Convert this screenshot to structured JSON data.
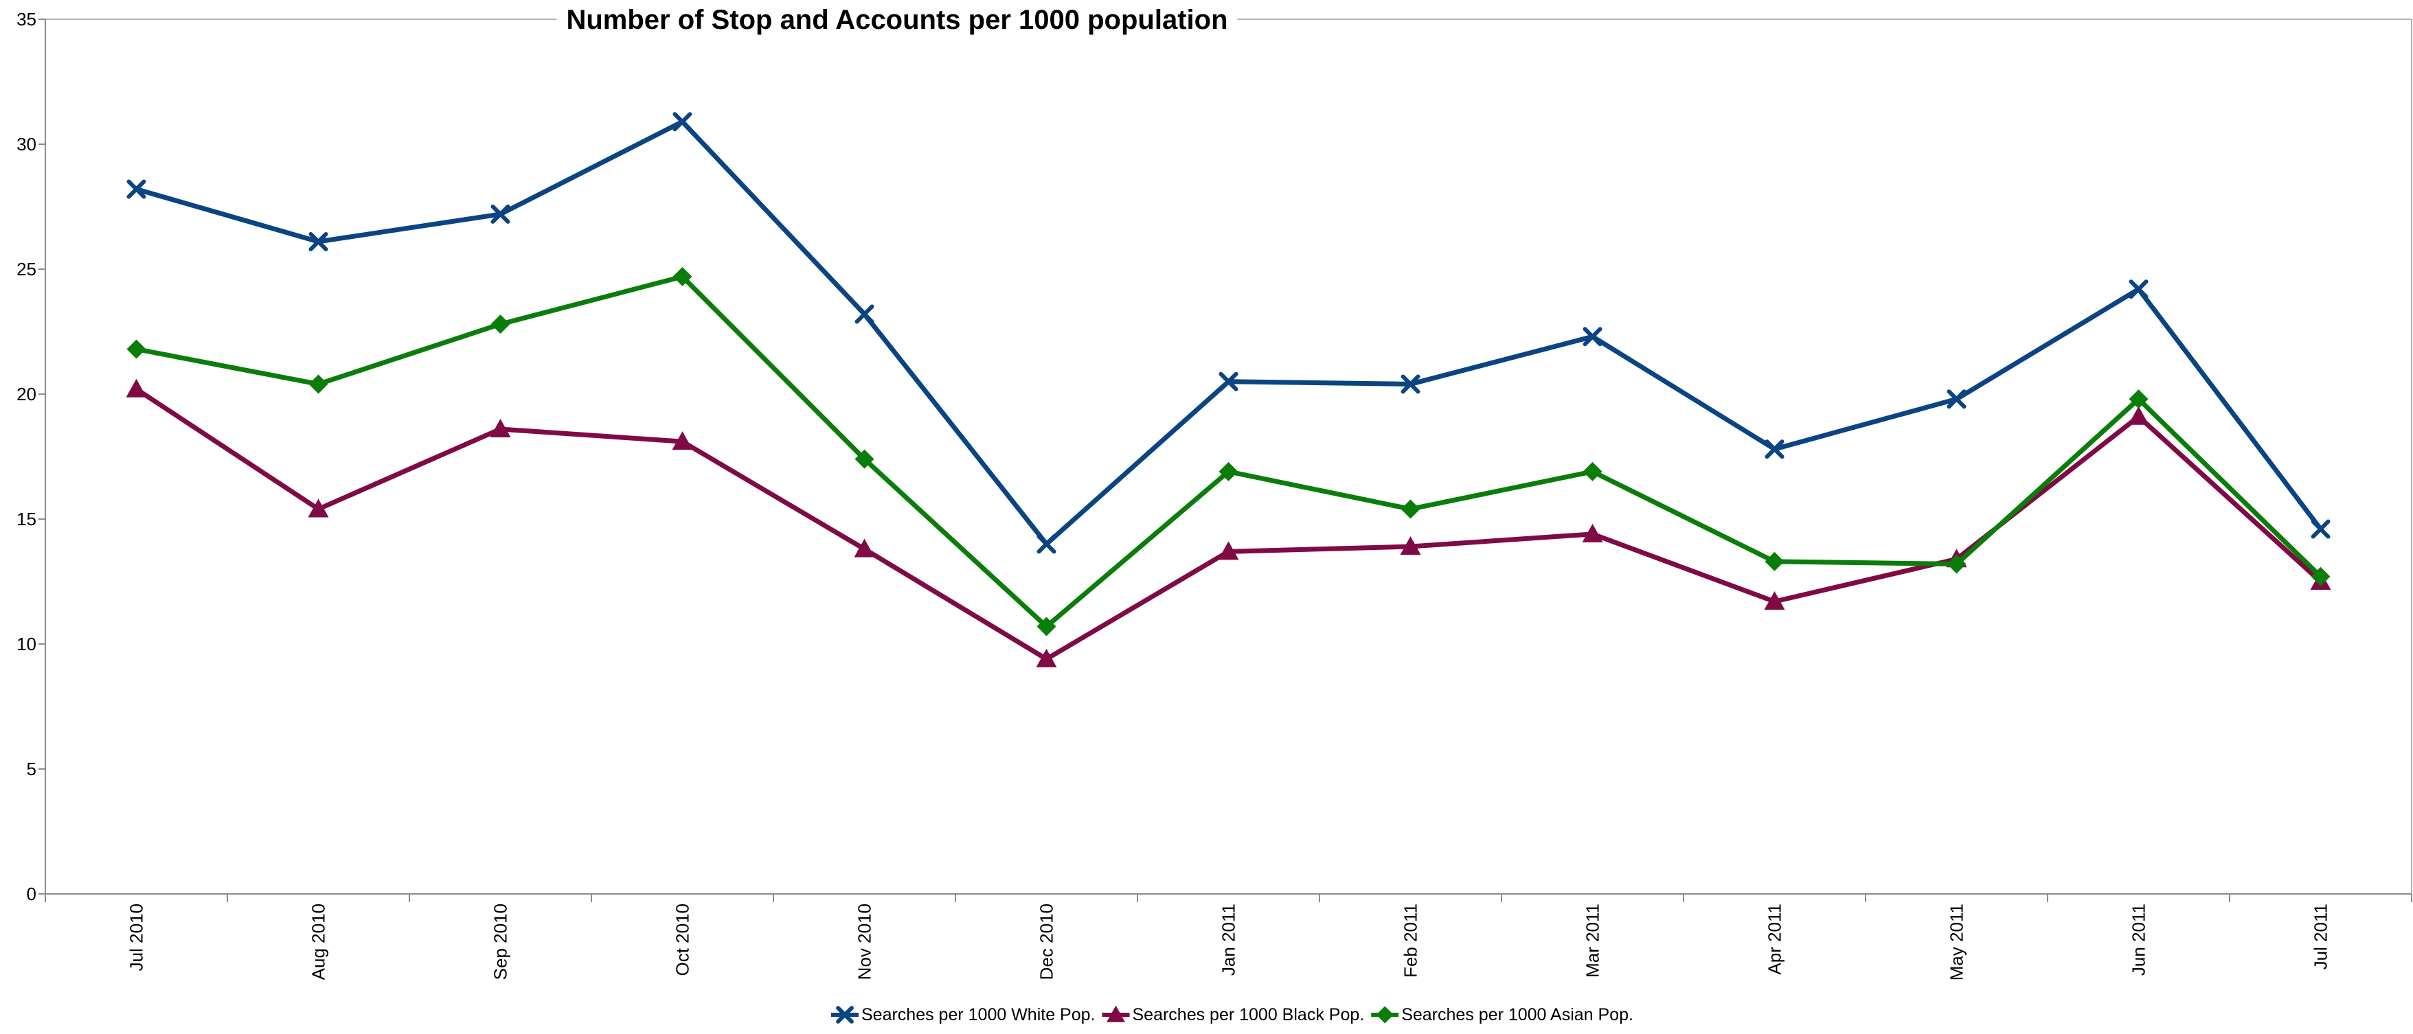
{
  "chart_data": {
    "type": "line",
    "title": "Number of Stop and Accounts per 1000 population",
    "xlabel": "",
    "ylabel": "",
    "ylim": [
      0,
      35
    ],
    "yticks": [
      "0",
      "5",
      "10",
      "15",
      "20",
      "25",
      "30",
      "35"
    ],
    "grid": false,
    "legend_position": "bottom",
    "categories": [
      "Jul 2010",
      "Aug 2010",
      "Sep 2010",
      "Oct 2010",
      "Nov 2010",
      "Dec 2010",
      "Jan 2011",
      "Feb 2011",
      "Mar 2011",
      "Apr 2011",
      "May 2011",
      "Jun 2011",
      "Jul 2011"
    ],
    "series": [
      {
        "name": "Searches per 1000 White Pop.",
        "color": "#0b4483",
        "marker": "x",
        "values": [
          28.2,
          26.1,
          27.2,
          30.9,
          23.2,
          14.0,
          20.5,
          20.4,
          22.3,
          17.8,
          19.8,
          24.2,
          14.6
        ]
      },
      {
        "name": "Searches per 1000  Black Pop.",
        "color": "#7f0a45",
        "marker": "triangle",
        "values": [
          20.2,
          15.4,
          18.6,
          18.1,
          13.8,
          9.4,
          13.7,
          13.9,
          14.4,
          11.7,
          13.4,
          19.1,
          12.5
        ]
      },
      {
        "name": "Searches per 1000 Asian Pop.",
        "color": "#0a7d0a",
        "marker": "diamond",
        "values": [
          21.8,
          20.4,
          22.8,
          24.7,
          17.4,
          10.7,
          16.9,
          15.4,
          16.9,
          13.3,
          13.2,
          19.8,
          12.7
        ]
      }
    ]
  }
}
